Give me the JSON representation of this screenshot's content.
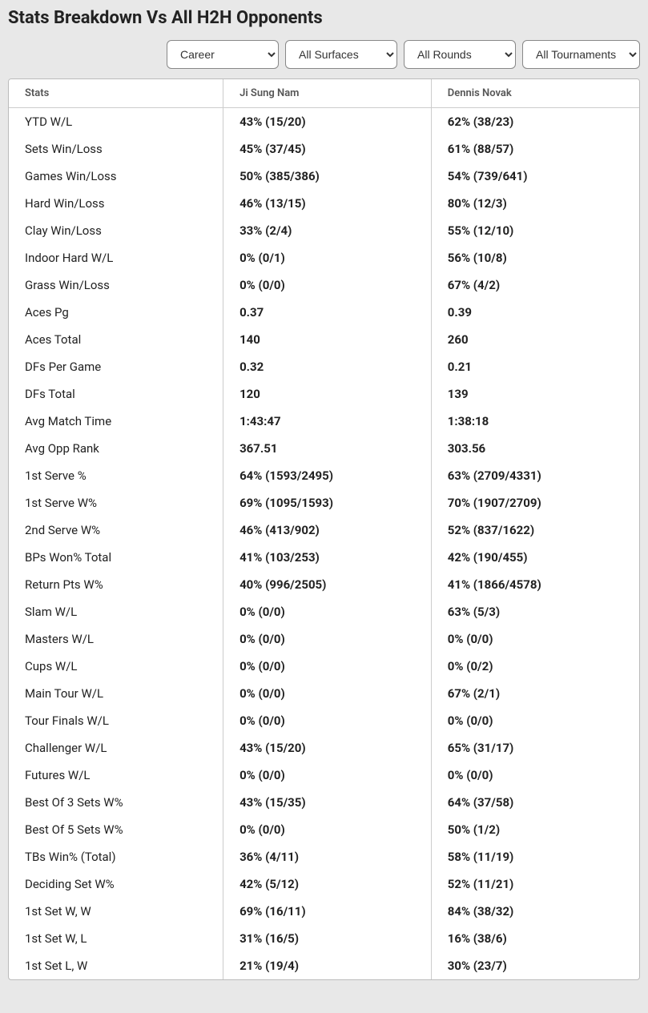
{
  "title": "Stats Breakdown Vs All H2H Opponents",
  "filters": {
    "period": "Career",
    "surface": "All Surfaces",
    "round": "All Rounds",
    "tournament": "All Tournaments"
  },
  "table": {
    "headers": {
      "stats": "Stats",
      "player1": "Ji Sung Nam",
      "player2": "Dennis Novak"
    },
    "rows": [
      {
        "label": "YTD W/L",
        "p1": "43% (15/20)",
        "p2": "62% (38/23)"
      },
      {
        "label": "Sets Win/Loss",
        "p1": "45% (37/45)",
        "p2": "61% (88/57)"
      },
      {
        "label": "Games Win/Loss",
        "p1": "50% (385/386)",
        "p2": "54% (739/641)"
      },
      {
        "label": "Hard Win/Loss",
        "p1": "46% (13/15)",
        "p2": "80% (12/3)"
      },
      {
        "label": "Clay Win/Loss",
        "p1": "33% (2/4)",
        "p2": "55% (12/10)"
      },
      {
        "label": "Indoor Hard W/L",
        "p1": "0% (0/1)",
        "p2": "56% (10/8)"
      },
      {
        "label": "Grass Win/Loss",
        "p1": "0% (0/0)",
        "p2": "67% (4/2)"
      },
      {
        "label": "Aces Pg",
        "p1": "0.37",
        "p2": "0.39"
      },
      {
        "label": "Aces Total",
        "p1": "140",
        "p2": "260"
      },
      {
        "label": "DFs Per Game",
        "p1": "0.32",
        "p2": "0.21"
      },
      {
        "label": "DFs Total",
        "p1": "120",
        "p2": "139"
      },
      {
        "label": "Avg Match Time",
        "p1": "1:43:47",
        "p2": "1:38:18"
      },
      {
        "label": "Avg Opp Rank",
        "p1": "367.51",
        "p2": "303.56"
      },
      {
        "label": "1st Serve %",
        "p1": "64% (1593/2495)",
        "p2": "63% (2709/4331)"
      },
      {
        "label": "1st Serve W%",
        "p1": "69% (1095/1593)",
        "p2": "70% (1907/2709)"
      },
      {
        "label": "2nd Serve W%",
        "p1": "46% (413/902)",
        "p2": "52% (837/1622)"
      },
      {
        "label": "BPs Won% Total",
        "p1": "41% (103/253)",
        "p2": "42% (190/455)"
      },
      {
        "label": "Return Pts W%",
        "p1": "40% (996/2505)",
        "p2": "41% (1866/4578)"
      },
      {
        "label": "Slam W/L",
        "p1": "0% (0/0)",
        "p2": "63% (5/3)"
      },
      {
        "label": "Masters W/L",
        "p1": "0% (0/0)",
        "p2": "0% (0/0)"
      },
      {
        "label": "Cups W/L",
        "p1": "0% (0/0)",
        "p2": "0% (0/2)"
      },
      {
        "label": "Main Tour W/L",
        "p1": "0% (0/0)",
        "p2": "67% (2/1)"
      },
      {
        "label": "Tour Finals W/L",
        "p1": "0% (0/0)",
        "p2": "0% (0/0)"
      },
      {
        "label": "Challenger W/L",
        "p1": "43% (15/20)",
        "p2": "65% (31/17)"
      },
      {
        "label": "Futures W/L",
        "p1": "0% (0/0)",
        "p2": "0% (0/0)"
      },
      {
        "label": "Best Of 3 Sets W%",
        "p1": "43% (15/35)",
        "p2": "64% (37/58)"
      },
      {
        "label": "Best Of 5 Sets W%",
        "p1": "0% (0/0)",
        "p2": "50% (1/2)"
      },
      {
        "label": "TBs Win% (Total)",
        "p1": "36% (4/11)",
        "p2": "58% (11/19)"
      },
      {
        "label": "Deciding Set W%",
        "p1": "42% (5/12)",
        "p2": "52% (11/21)"
      },
      {
        "label": "1st Set W, W",
        "p1": "69% (16/11)",
        "p2": "84% (38/32)"
      },
      {
        "label": "1st Set W, L",
        "p1": "31% (16/5)",
        "p2": "16% (38/6)"
      },
      {
        "label": "1st Set L, W",
        "p1": "21% (19/4)",
        "p2": "30% (23/7)"
      }
    ]
  }
}
